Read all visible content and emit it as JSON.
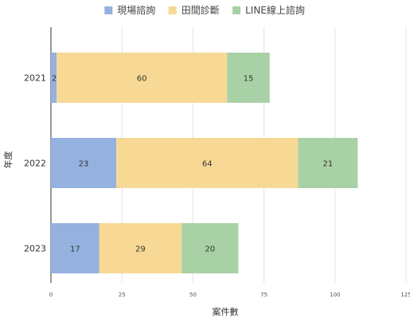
{
  "chart_data": {
    "type": "bar",
    "orientation": "horizontal",
    "stacked": true,
    "title": "",
    "xlabel": "案件數",
    "ylabel": "年度",
    "categories": [
      "2021",
      "2022",
      "2023"
    ],
    "series": [
      {
        "name": "現場諮詢",
        "color": "#94b1e0",
        "values": [
          2,
          23,
          17
        ]
      },
      {
        "name": "田間診斷",
        "color": "#f7d894",
        "values": [
          60,
          64,
          29
        ]
      },
      {
        "name": "LINE線上諮詢",
        "color": "#a9d1a6",
        "values": [
          15,
          21,
          20
        ]
      }
    ],
    "xlim": [
      0,
      125
    ],
    "xticks": [
      "0",
      "25",
      "50",
      "75",
      "100",
      "125"
    ],
    "grid": "vertical",
    "legend_position": "top-center"
  }
}
